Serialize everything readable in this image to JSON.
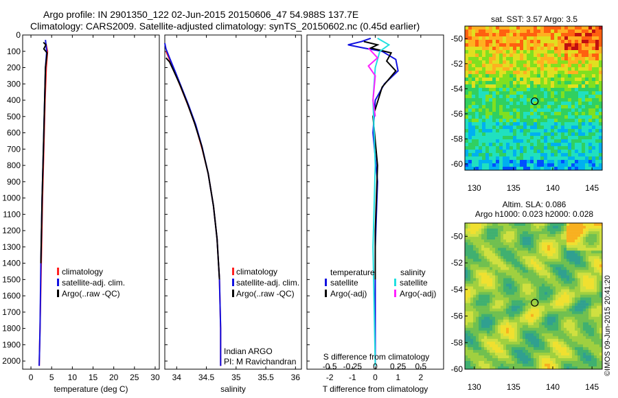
{
  "header": {
    "line1": "Argo profile: IN 2901350_122 02-Jun-2015 20150606_47 54.988S 137.7E",
    "line2": "Climatology: CARS2009. Satellite-adjusted climatology: synTS_20150602.nc (0.45d earlier)"
  },
  "watermark": "©IMOS 09-Jun-2015 20:41:20",
  "colors": {
    "red": "#ff2020",
    "blue": "#1010e0",
    "black": "#000000",
    "cyan": "#20e0e0",
    "magenta": "#ff20ff"
  },
  "chart_data": [
    {
      "type": "line",
      "id": "temperature",
      "xlabel": "temperature (deg C)",
      "xlim": [
        -2,
        31
      ],
      "ylim": [
        0,
        2050
      ],
      "xticks": [
        0,
        5,
        10,
        15,
        20,
        25,
        30
      ],
      "yticks": [
        0,
        100,
        200,
        300,
        400,
        500,
        600,
        700,
        800,
        900,
        1000,
        1100,
        1200,
        1300,
        1400,
        1500,
        1600,
        1700,
        1800,
        1900,
        2000
      ],
      "legend": [
        "climatology",
        "satellite-adj. clim.",
        "Argo(..raw -QC)"
      ],
      "series": [
        {
          "name": "climatology",
          "color": "red",
          "points": [
            [
              3.6,
              50
            ],
            [
              4.0,
              100
            ],
            [
              3.7,
              200
            ],
            [
              3.4,
              400
            ],
            [
              3.1,
              700
            ],
            [
              2.8,
              1000
            ],
            [
              2.5,
              1400
            ],
            [
              2.2,
              1800
            ],
            [
              2.0,
              2030
            ]
          ]
        },
        {
          "name": "satellite-adj. clim.",
          "color": "blue",
          "points": [
            [
              3.5,
              30
            ],
            [
              3.8,
              100
            ],
            [
              3.5,
              200
            ],
            [
              3.3,
              400
            ],
            [
              3.0,
              700
            ],
            [
              2.7,
              1000
            ],
            [
              2.4,
              1400
            ],
            [
              2.2,
              1800
            ],
            [
              2.0,
              2030
            ]
          ]
        },
        {
          "name": "Argo(..raw -QC)",
          "color": "black",
          "points": [
            [
              3.0,
              45
            ],
            [
              3.6,
              60
            ],
            [
              3.1,
              85
            ],
            [
              3.9,
              110
            ],
            [
              3.5,
              200
            ],
            [
              3.3,
              400
            ],
            [
              3.0,
              700
            ],
            [
              2.7,
              1000
            ],
            [
              2.4,
              1400
            ]
          ]
        }
      ]
    },
    {
      "type": "line",
      "id": "salinity",
      "xlabel": "salinity",
      "xlim": [
        33.8,
        36.1
      ],
      "ylim": [
        0,
        2050
      ],
      "xticks": [
        34,
        34.5,
        35,
        35.5,
        36
      ],
      "legend": [
        "climatology",
        "satellite-adj. clim.",
        "Argo(..raw -QC)"
      ],
      "footnote1": "Indian ARGO",
      "footnote2": "PI: M Ravichandran",
      "series": [
        {
          "name": "climatology",
          "color": "red",
          "points": [
            [
              33.82,
              100
            ],
            [
              33.88,
              150
            ],
            [
              33.97,
              230
            ],
            [
              34.08,
              330
            ],
            [
              34.2,
              440
            ],
            [
              34.32,
              560
            ],
            [
              34.43,
              700
            ],
            [
              34.53,
              850
            ],
            [
              34.62,
              1050
            ],
            [
              34.68,
              1250
            ],
            [
              34.72,
              1500
            ],
            [
              34.74,
              1800
            ],
            [
              34.74,
              2030
            ]
          ]
        },
        {
          "name": "satellite-adj. clim.",
          "color": "blue",
          "points": [
            [
              33.8,
              50
            ],
            [
              33.82,
              85
            ],
            [
              33.88,
              140
            ],
            [
              33.97,
              220
            ],
            [
              34.08,
              320
            ],
            [
              34.2,
              430
            ],
            [
              34.32,
              550
            ],
            [
              34.43,
              690
            ],
            [
              34.53,
              850
            ],
            [
              34.62,
              1050
            ],
            [
              34.68,
              1250
            ],
            [
              34.72,
              1500
            ],
            [
              34.74,
              1800
            ],
            [
              34.74,
              2030
            ]
          ]
        },
        {
          "name": "Argo(..raw -QC)",
          "color": "black",
          "points": [
            [
              33.82,
              140
            ],
            [
              33.88,
              165
            ],
            [
              33.95,
              220
            ],
            [
              34.06,
              310
            ],
            [
              34.18,
              420
            ],
            [
              34.3,
              540
            ],
            [
              34.42,
              680
            ],
            [
              34.53,
              850
            ],
            [
              34.62,
              1050
            ],
            [
              34.68,
              1250
            ],
            [
              34.72,
              1500
            ]
          ]
        }
      ]
    },
    {
      "type": "line",
      "id": "difference",
      "xlabel": "T difference from climatology",
      "xlabel2": "S difference from climatology",
      "xlim": [
        -3,
        3
      ],
      "xticks": [
        -2,
        -1,
        0,
        1,
        2
      ],
      "sticks": [
        "-0.5",
        "-0.25",
        "0",
        "0.25",
        "0.5"
      ],
      "legend_titles": [
        "temperature",
        "salinity"
      ],
      "legend": [
        "satellite",
        "Argo(-adj)",
        "satellite",
        "Argo(-adj)"
      ],
      "series": [
        {
          "name": "T satellite",
          "color": "blue",
          "points": [
            [
              -0.2,
              20
            ],
            [
              -0.6,
              40
            ],
            [
              -1.2,
              60
            ],
            [
              -0.5,
              80
            ],
            [
              0.3,
              100
            ],
            [
              0.9,
              150
            ],
            [
              1.0,
              220
            ],
            [
              0.4,
              300
            ],
            [
              0.0,
              400
            ],
            [
              -0.1,
              600
            ],
            [
              0.1,
              900
            ],
            [
              0.0,
              1300
            ],
            [
              0.0,
              2030
            ]
          ]
        },
        {
          "name": "T Argo(-adj)",
          "color": "black",
          "points": [
            [
              -0.5,
              40
            ],
            [
              0.1,
              60
            ],
            [
              -0.2,
              80
            ],
            [
              0.7,
              110
            ],
            [
              0.5,
              160
            ],
            [
              0.9,
              220
            ],
            [
              0.3,
              320
            ],
            [
              -0.1,
              500
            ],
            [
              0.1,
              800
            ],
            [
              0.0,
              1200
            ],
            [
              0.0,
              1500
            ]
          ]
        },
        {
          "name": "S satellite",
          "color": "cyan",
          "points": [
            [
              0.1,
              20
            ],
            [
              0.6,
              60
            ],
            [
              0.2,
              100
            ],
            [
              0.0,
              200
            ],
            [
              -0.1,
              400
            ],
            [
              0.0,
              800
            ],
            [
              -0.1,
              1300
            ],
            [
              0.0,
              2030
            ]
          ]
        },
        {
          "name": "S Argo(-adj)",
          "color": "magenta",
          "points": [
            [
              -0.3,
              80
            ],
            [
              0.1,
              140
            ],
            [
              -0.3,
              190
            ],
            [
              0.0,
              250
            ],
            [
              -0.1,
              400
            ],
            [
              0.0,
              500
            ]
          ]
        }
      ]
    }
  ],
  "maps": [
    {
      "title": "sat. SST: 3.57 Argo: 3.5",
      "palette": [
        "#0000a0",
        "#0050ff",
        "#00b0f0",
        "#20e0c0",
        "#30d060",
        "#80e020",
        "#e0e020",
        "#ffb020",
        "#ff6010",
        "#c01010"
      ],
      "band": [
        7,
        7,
        6,
        6,
        5,
        4,
        4,
        4,
        3,
        3,
        3,
        2
      ],
      "lonticks": [
        130,
        135,
        140,
        145
      ],
      "latticks": [
        -50,
        -52,
        -54,
        -56,
        -58,
        -60
      ],
      "lon": [
        128.8,
        146.3
      ],
      "lat": [
        -49,
        -60.5
      ],
      "marker_lon": 137.7,
      "marker_lat": -55.0
    },
    {
      "title1": "Altim. SLA: 0.086",
      "title2": "Argo h1000: 0.023 h2000: 0.028",
      "palette": [
        "#30a090",
        "#40b070",
        "#70c050",
        "#a0d040",
        "#d0e040",
        "#f0e030",
        "#f8b020"
      ],
      "lonticks": [
        130,
        135,
        140,
        145
      ],
      "latticks": [
        -50,
        -52,
        -54,
        -56,
        -58,
        -60
      ],
      "lon": [
        128.8,
        146.3
      ],
      "lat": [
        -49,
        -60
      ],
      "marker_lon": 137.7,
      "marker_lat": -55.0
    }
  ]
}
